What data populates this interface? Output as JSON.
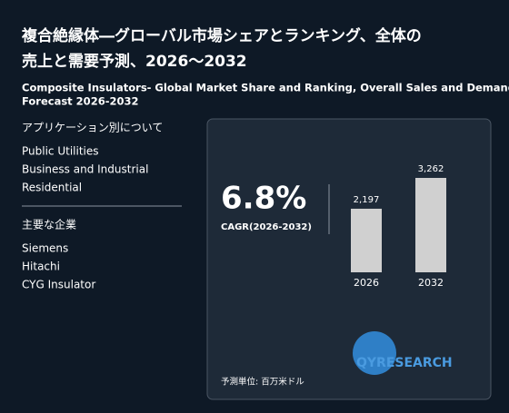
{
  "header": {
    "title_lines": [
      "複合絶縁体―グローバル市場シェアとランキング、全体の",
      "売上と需要予測、2026～2032"
    ],
    "subtitle_lines": [
      "Composite Insulators- Global Market Share and Ranking, Overall Sales and Demand",
      "Forecast 2026-2032"
    ]
  },
  "sidebar": {
    "application_heading": "アプリケーション別について",
    "applications": [
      "Public Utilities",
      "Business and Industrial",
      "Residential"
    ],
    "companies_heading": "主要な企業",
    "companies": [
      "Siemens",
      "Hitachi",
      "CYG Insulator"
    ]
  },
  "card": {
    "cagr": "6.8%",
    "cagr_label": "CAGR(2026-2032)",
    "chart": {
      "type": "bar",
      "categories": [
        "2026",
        "2032"
      ],
      "values": [
        2197,
        3262
      ],
      "value_labels": [
        "2,197",
        "3,262"
      ],
      "color": "#d0d0d0"
    },
    "unit": "予測単位: 百万米ドル",
    "logo": "QYRESEARCH"
  }
}
